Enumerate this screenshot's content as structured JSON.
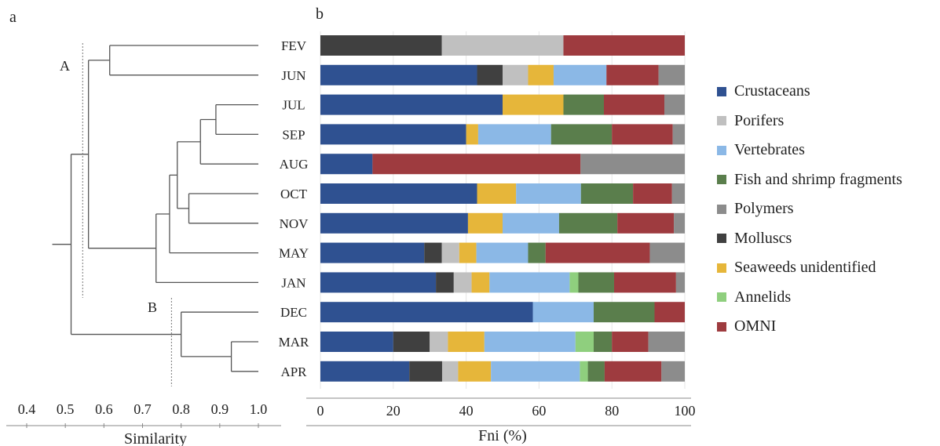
{
  "panel_a": {
    "panel_label": "a",
    "cluster_labels": [
      "A",
      "B"
    ],
    "axis_label": "Similarity",
    "ticks": [
      0.4,
      0.5,
      0.6,
      0.7,
      0.8,
      0.9,
      1.0
    ],
    "tick_labels": [
      "0.4",
      "0.5",
      "0.6",
      "0.7",
      "0.8",
      "0.9",
      "1.0"
    ],
    "leaves": [
      "FEV",
      "JUN",
      "JUL",
      "SEP",
      "AUG",
      "OCT",
      "NOV",
      "MAY",
      "JAN",
      "DEC",
      "MAR",
      "APR"
    ],
    "cutoff_A": 0.545,
    "cutoff_B": 0.775
  },
  "chart_data": {
    "type": "bar",
    "orientation": "horizontal",
    "stacked": true,
    "panel_label": "b",
    "xlabel": "Fni (%)",
    "xlim": [
      0,
      100
    ],
    "xticks": [
      0,
      20,
      40,
      60,
      80,
      100
    ],
    "grid": true,
    "legend_position": "right",
    "categories": [
      "FEV",
      "JUN",
      "JUL",
      "SEP",
      "AUG",
      "OCT",
      "NOV",
      "MAY",
      "JAN",
      "DEC",
      "MAR",
      "APR"
    ],
    "series": [
      {
        "name": "Crustaceans",
        "color": "#2f5191",
        "values": [
          0,
          43,
          50,
          40,
          14.3,
          43,
          40.5,
          28.5,
          31.7,
          58.3,
          20,
          24.4
        ]
      },
      {
        "name": "Molluscs",
        "color": "#404040",
        "values": [
          33.3,
          7,
          0,
          0,
          0,
          0,
          0,
          4.8,
          4.9,
          0,
          10,
          9
        ]
      },
      {
        "name": "Porifers",
        "color": "#c0c0c0",
        "values": [
          33.4,
          7,
          0,
          0,
          0,
          0,
          0,
          4.8,
          4.9,
          0,
          5,
          4.4
        ]
      },
      {
        "name": "Seaweeds unidentified",
        "color": "#e6b63a",
        "values": [
          0,
          7,
          16.7,
          3.3,
          0,
          10.7,
          9.5,
          4.7,
          4.9,
          0,
          10,
          9
        ]
      },
      {
        "name": "Vertebrates",
        "color": "#8bb8e6",
        "values": [
          0,
          14.5,
          0,
          20,
          0,
          17.8,
          15.5,
          14.2,
          22,
          16.7,
          25,
          24.4
        ]
      },
      {
        "name": "Annelids",
        "color": "#8fcf7e",
        "values": [
          0,
          0,
          0,
          0,
          0,
          0,
          0,
          0,
          2.4,
          0,
          5,
          2.2
        ]
      },
      {
        "name": "Fish and shrimp fragments",
        "color": "#5a7e4c",
        "values": [
          0,
          0,
          11.1,
          16.7,
          0,
          14.3,
          16,
          4.8,
          9.8,
          16.7,
          5,
          4.6
        ]
      },
      {
        "name": "OMNI",
        "color": "#9e3b3f",
        "values": [
          33.3,
          14.3,
          16.6,
          16.7,
          57.1,
          10.7,
          15.5,
          28.6,
          17,
          8.3,
          10,
          15.6
        ]
      },
      {
        "name": "Polymers",
        "color": "#8c8c8c",
        "values": [
          0,
          7.2,
          5.6,
          3.3,
          28.6,
          3.5,
          3,
          9.6,
          2.4,
          0,
          10,
          6.4
        ]
      }
    ],
    "legend_order": [
      "Crustaceans",
      "Porifers",
      "Vertebrates",
      "Fish and shrimp fragments",
      "Polymers",
      "Molluscs",
      "Seaweeds unidentified",
      "Annelids",
      "OMNI"
    ]
  }
}
